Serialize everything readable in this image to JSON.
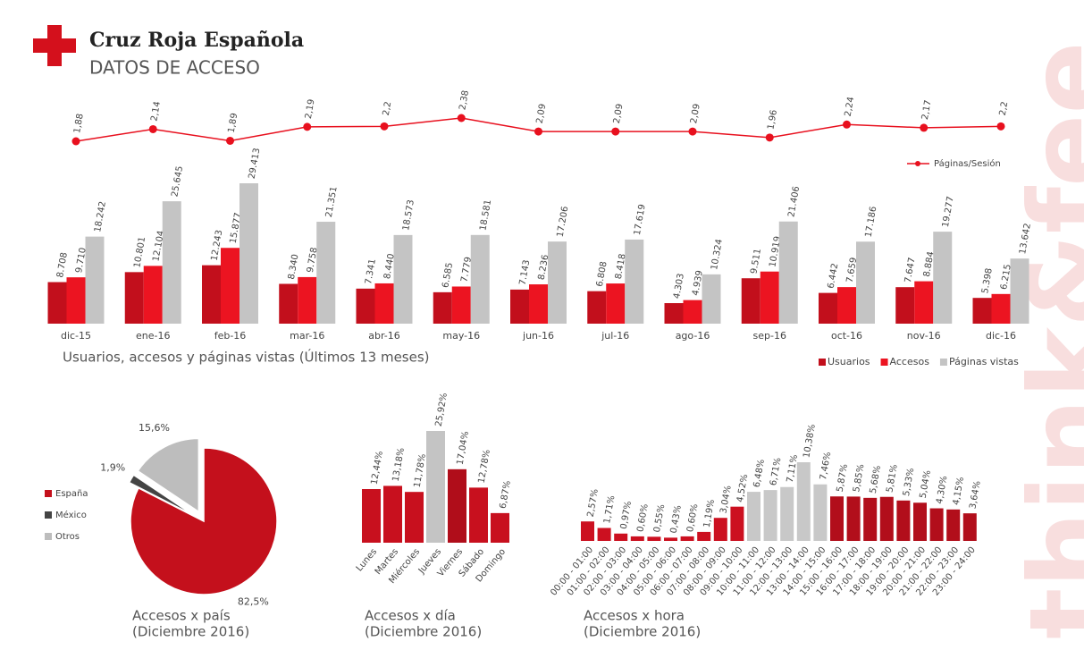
{
  "header": {
    "brand": "Cruz Roja Española",
    "subtitle": "DATOS DE ACCESO"
  },
  "watermark": "think&fee",
  "chart_data": [
    {
      "type": "line",
      "series": [
        {
          "name": "Páginas/Sesión",
          "color": "#e8101e",
          "values": [
            1.88,
            2.14,
            1.89,
            2.19,
            2.2,
            2.38,
            2.09,
            2.09,
            2.09,
            1.96,
            2.24,
            2.17,
            2.2
          ],
          "value_labels": [
            "1,88",
            "2,14",
            "1,89",
            "2,19",
            "2,2",
            "2,38",
            "2,09",
            "2,09",
            "2,09",
            "1,96",
            "2,24",
            "2,17",
            "2,2"
          ]
        }
      ]
    },
    {
      "type": "grouped_bar",
      "title": "Usuarios, accesos y páginas vistas (Últimos 13 meses)",
      "categories": [
        "dic-15",
        "ene-16",
        "feb-16",
        "mar-16",
        "abr-16",
        "may-16",
        "jun-16",
        "jul-16",
        "ago-16",
        "sep-16",
        "oct-16",
        "nov-16",
        "dic-16"
      ],
      "series": [
        {
          "name": "Usuarios",
          "color": "#c20f1c",
          "values": [
            8708,
            10801,
            12243,
            8340,
            7341,
            6585,
            7143,
            6808,
            4303,
            9511,
            6442,
            7647,
            5398
          ],
          "value_labels": [
            "8.708",
            "10.801",
            "12.243",
            "8.340",
            "7.341",
            "6.585",
            "7.143",
            "6.808",
            "4.303",
            "9.511",
            "6.442",
            "7.647",
            "5.398"
          ]
        },
        {
          "name": "Accesos",
          "color": "#ec1421",
          "values": [
            9710,
            12104,
            15877,
            9758,
            8440,
            7779,
            8236,
            8418,
            4939,
            10919,
            7659,
            8884,
            6215
          ],
          "value_labels": [
            "9.710",
            "12.104",
            "15.877",
            "9.758",
            "8.440",
            "7.779",
            "8.236",
            "8.418",
            "4.939",
            "10.919",
            "7.659",
            "8.884",
            "6.215"
          ]
        },
        {
          "name": "Páginas vistas",
          "color": "#c4c4c4",
          "values": [
            18242,
            25645,
            29413,
            21351,
            18573,
            18581,
            17206,
            17619,
            10324,
            21406,
            17186,
            19277,
            13642
          ],
          "value_labels": [
            "18.242",
            "25.645",
            "29.413",
            "21.351",
            "18.573",
            "18.581",
            "17.206",
            "17.619",
            "10.324",
            "21.406",
            "17.186",
            "19.277",
            "13.642"
          ]
        }
      ]
    },
    {
      "type": "pie",
      "title": "Accesos x país",
      "subtitle": "(Diciembre 2016)",
      "categories": [
        "España",
        "México",
        "Otros"
      ],
      "values": [
        82.5,
        1.9,
        15.6
      ],
      "value_labels": [
        "82,5%",
        "1,9%",
        "15,6%"
      ],
      "colors": [
        "#c4101c",
        "#444444",
        "#bdbdbd"
      ]
    },
    {
      "type": "bar",
      "title": "Accesos x día",
      "subtitle": "(Diciembre 2016)",
      "categories": [
        "Lunes",
        "Martes",
        "Miércoles",
        "Jueves",
        "Viernes",
        "Sábado",
        "Domingo"
      ],
      "values": [
        12.44,
        13.18,
        11.78,
        25.92,
        17.04,
        12.78,
        6.87
      ],
      "value_labels": [
        "12,44%",
        "13,18%",
        "11,78%",
        "25,92%",
        "17,04%",
        "12,78%",
        "6,87%"
      ],
      "colors": [
        "#c8101e",
        "#c8101e",
        "#c8101e",
        "#c4c4c4",
        "#b00d1a",
        "#c8101e",
        "#c8101e"
      ]
    },
    {
      "type": "bar",
      "title": "Accesos x hora",
      "subtitle": "(Diciembre 2016)",
      "categories": [
        "00:00 - 01:00",
        "01:00 - 02:00",
        "02:00 - 03:00",
        "03:00 - 04:00",
        "04:00 - 05:00",
        "05:00 - 06:00",
        "06:00 - 07:00",
        "07:00 - 08:00",
        "08:00 - 09:00",
        "09:00 - 10:00",
        "10:00 - 11:00",
        "11:00 - 12:00",
        "12:00 - 13:00",
        "13:00 - 14:00",
        "14:00 - 15:00",
        "15:00 - 16:00",
        "16:00 - 17:00",
        "17:00 - 18:00",
        "18:00 - 19:00",
        "19:00 - 20:00",
        "20:00 - 21:00",
        "21:00 - 22:00",
        "22:00 - 23:00",
        "23:00 - 24:00"
      ],
      "values": [
        2.57,
        1.71,
        0.97,
        0.6,
        0.55,
        0.43,
        0.6,
        1.19,
        3.04,
        4.52,
        6.48,
        6.71,
        7.11,
        10.38,
        7.46,
        5.87,
        5.85,
        5.68,
        5.81,
        5.33,
        5.04,
        4.3,
        4.15,
        3.64
      ],
      "value_labels": [
        "2,57%",
        "1,71%",
        "0,97%",
        "0,60%",
        "0,55%",
        "0,43%",
        "0,60%",
        "1,19%",
        "3,04%",
        "4,52%",
        "6,48%",
        "6,71%",
        "7,11%",
        "10,38%",
        "7,46%",
        "5,87%",
        "5,85%",
        "5,68%",
        "5,81%",
        "5,33%",
        "5,04%",
        "4,30%",
        "4,15%",
        "3,64%"
      ],
      "colors": [
        "#cc1020",
        "#cc1020",
        "#cc1020",
        "#cc1020",
        "#cc1020",
        "#cc1020",
        "#cc1020",
        "#cc1020",
        "#cc1020",
        "#cc1020",
        "#c8c8c8",
        "#c8c8c8",
        "#c8c8c8",
        "#c8c8c8",
        "#c8c8c8",
        "#b20e1b",
        "#b20e1b",
        "#b20e1b",
        "#b20e1b",
        "#b20e1b",
        "#b20e1b",
        "#b20e1b",
        "#b20e1b",
        "#b20e1b"
      ]
    }
  ]
}
